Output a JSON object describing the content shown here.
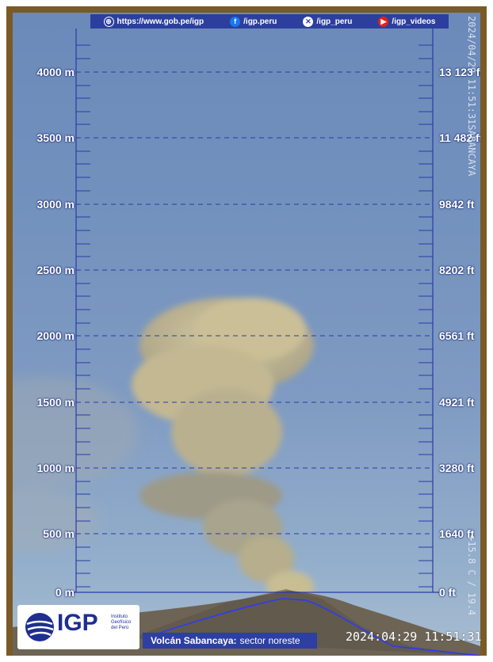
{
  "header": {
    "website": "https://www.gob.pe/igp",
    "facebook": "/igp.peru",
    "x": "/igp_peru",
    "youtube": "/igp_videos"
  },
  "scale": {
    "meters": [
      "4000 m",
      "3500 m",
      "3000 m",
      "2500 m",
      "2000 m",
      "1500 m",
      "1000 m",
      "500 m",
      "0 m"
    ],
    "feet": [
      "13 123 ft",
      "11 482 ft",
      "9842 ft",
      "8202 ft",
      "6561 ft",
      "4921 ft",
      "3280 ft",
      "1640 ft",
      "0 ft"
    ]
  },
  "logo": {
    "name": "IGP",
    "subtitle": "Instituto Geofísico del Perú"
  },
  "caption": {
    "volcano": "Volcán Sabancaya:",
    "sector": "sector noreste"
  },
  "timestamp": "2024:04:29 11:51:31",
  "overlay": {
    "right_vertical_top": "2024/04/29 11:51:31SABANCAYA",
    "right_vertical_bottom": "+15.8 C / 19.4"
  },
  "colors": {
    "scale_blue": "#2a3aa8",
    "sky": "#7391bd",
    "plume": "#bdb38e"
  }
}
